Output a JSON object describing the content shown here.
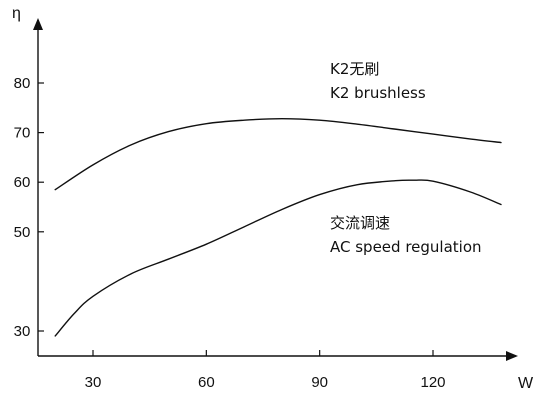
{
  "chart_data": {
    "type": "line",
    "title": "",
    "xlabel": "W",
    "ylabel": "η",
    "xlim": [
      10,
      140
    ],
    "ylim": [
      25,
      90
    ],
    "x_ticks": [
      30,
      60,
      90,
      120
    ],
    "y_ticks": [
      30,
      50,
      60,
      70,
      80
    ],
    "x_tick_labels": [
      "30",
      "60",
      "90",
      "120"
    ],
    "y_tick_labels": [
      "30",
      "50",
      "60",
      "70",
      "80"
    ],
    "grid": false,
    "series": [
      {
        "name": "K2 brushless",
        "x": [
          20,
          30,
          40,
          50,
          60,
          70,
          80,
          90,
          100,
          110,
          120,
          130,
          138
        ],
        "y": [
          58.5,
          63.5,
          67.5,
          70.2,
          71.8,
          72.5,
          72.8,
          72.5,
          71.7,
          70.7,
          69.7,
          68.7,
          68.0
        ]
      },
      {
        "name": "AC speed regulation",
        "x": [
          20,
          25,
          30,
          40,
          50,
          60,
          70,
          80,
          90,
          100,
          110,
          115,
          120,
          130,
          138
        ],
        "y": [
          29.0,
          33.5,
          37.0,
          41.5,
          44.5,
          47.5,
          51.0,
          54.5,
          57.5,
          59.5,
          60.3,
          60.4,
          60.2,
          58.0,
          55.5
        ]
      }
    ],
    "annotations": [
      {
        "lines": [
          "K2无刷",
          "K2 brushless"
        ]
      },
      {
        "lines": [
          "交流调速",
          "AC speed regulation"
        ]
      }
    ]
  }
}
